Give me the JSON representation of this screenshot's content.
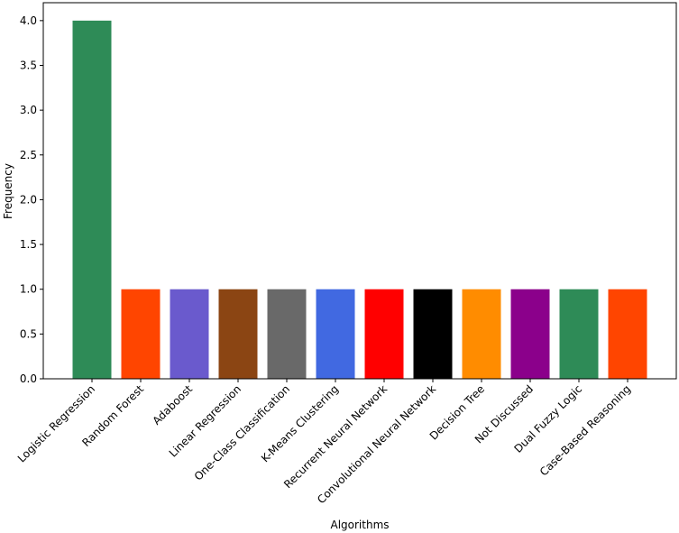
{
  "chart_data": {
    "type": "bar",
    "title": "",
    "xlabel": "Algorithms",
    "ylabel": "Frequency",
    "ylim": [
      0,
      4.2
    ],
    "yticks": [
      "0.0",
      "0.5",
      "1.0",
      "1.5",
      "2.0",
      "2.5",
      "3.0",
      "3.5",
      "4.0"
    ],
    "grid": false,
    "categories": [
      "Logistic Regression",
      "Random Forest",
      "Adaboost",
      "Linear Regression",
      "One-Class Classification",
      "K-Means Clustering",
      "Recurrent Neural Network",
      "Convolutional Neural Network",
      "Decision Tree",
      "Not Discussed",
      "Dual Fuzzy Logic",
      "Case-Based Reasoning"
    ],
    "values": [
      4,
      1,
      1,
      1,
      1,
      1,
      1,
      1,
      1,
      1,
      1,
      1
    ],
    "colors": [
      "#2e8b57",
      "#ff4500",
      "#6a5acd",
      "#8b4513",
      "#696969",
      "#4169e1",
      "#ff0000",
      "#000000",
      "#ff8c00",
      "#8b008b",
      "#2e8b57",
      "#ff4500"
    ]
  }
}
